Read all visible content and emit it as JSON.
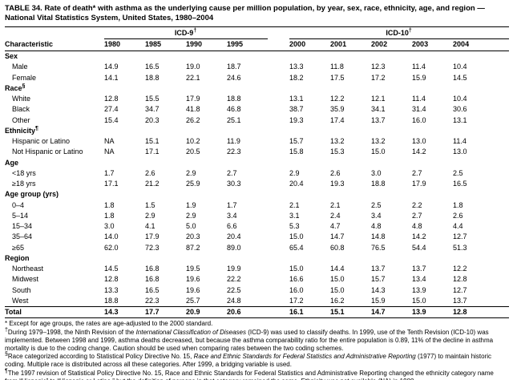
{
  "title": "TABLE 34. Rate of death* with asthma as the underlying cause per million population, by year, sex, race, ethnicity, age, and region — National Vital Statistics System, United States, 1980–2004",
  "table": {
    "char_header": "Characteristic",
    "group_headers": [
      {
        "label": "ICD-9",
        "marker": "†"
      },
      {
        "label": "ICD-10",
        "marker": "†"
      }
    ],
    "years": [
      "1980",
      "1985",
      "1990",
      "1995",
      "2000",
      "2001",
      "2002",
      "2003",
      "2004"
    ],
    "rows": [
      {
        "type": "section",
        "label": "Sex"
      },
      {
        "type": "data",
        "indent": true,
        "label": "Male",
        "values": [
          "14.9",
          "16.5",
          "19.0",
          "18.7",
          "13.3",
          "11.8",
          "12.3",
          "11.4",
          "10.4"
        ]
      },
      {
        "type": "data",
        "indent": true,
        "label": "Female",
        "values": [
          "14.1",
          "18.8",
          "22.1",
          "24.6",
          "18.2",
          "17.5",
          "17.2",
          "15.9",
          "14.5"
        ]
      },
      {
        "type": "section",
        "label": "Race",
        "marker": "§"
      },
      {
        "type": "data",
        "indent": true,
        "label": "White",
        "values": [
          "12.8",
          "15.5",
          "17.9",
          "18.8",
          "13.1",
          "12.2",
          "12.1",
          "11.4",
          "10.4"
        ]
      },
      {
        "type": "data",
        "indent": true,
        "label": "Black",
        "values": [
          "27.4",
          "34.7",
          "41.8",
          "46.8",
          "38.7",
          "35.9",
          "34.1",
          "31.4",
          "30.6"
        ]
      },
      {
        "type": "data",
        "indent": true,
        "label": "Other",
        "values": [
          "15.4",
          "20.3",
          "26.2",
          "25.1",
          "19.3",
          "17.4",
          "13.7",
          "16.0",
          "13.1"
        ]
      },
      {
        "type": "section",
        "label": "Ethnicity",
        "marker": "¶"
      },
      {
        "type": "data",
        "indent": true,
        "label": "Hispanic or Latino",
        "values": [
          "NA",
          "15.1",
          "10.2",
          "11.9",
          "15.7",
          "13.2",
          "13.2",
          "13.0",
          "11.4"
        ]
      },
      {
        "type": "data",
        "indent": true,
        "label": "Not Hispanic or Latino",
        "values": [
          "NA",
          "17.1",
          "20.5",
          "22.3",
          "15.8",
          "15.3",
          "15.0",
          "14.2",
          "13.0"
        ]
      },
      {
        "type": "section",
        "label": "Age"
      },
      {
        "type": "data",
        "indent": true,
        "label": "<18 yrs",
        "values": [
          "1.7",
          "2.6",
          "2.9",
          "2.7",
          "2.9",
          "2.6",
          "3.0",
          "2.7",
          "2.5"
        ]
      },
      {
        "type": "data",
        "indent": true,
        "label": "≥18 yrs",
        "values": [
          "17.1",
          "21.2",
          "25.9",
          "30.3",
          "20.4",
          "19.3",
          "18.8",
          "17.9",
          "16.5"
        ]
      },
      {
        "type": "section",
        "label": "Age group (yrs)"
      },
      {
        "type": "data",
        "indent": true,
        "label": "0–4",
        "values": [
          "1.8",
          "1.5",
          "1.9",
          "1.7",
          "2.1",
          "2.1",
          "2.5",
          "2.2",
          "1.8"
        ]
      },
      {
        "type": "data",
        "indent": true,
        "label": "5–14",
        "values": [
          "1.8",
          "2.9",
          "2.9",
          "3.4",
          "3.1",
          "2.4",
          "3.4",
          "2.7",
          "2.6"
        ]
      },
      {
        "type": "data",
        "indent": true,
        "label": "15–34",
        "values": [
          "3.0",
          "4.1",
          "5.0",
          "6.6",
          "5.3",
          "4.7",
          "4.8",
          "4.8",
          "4.4"
        ]
      },
      {
        "type": "data",
        "indent": true,
        "label": "35–64",
        "values": [
          "14.0",
          "17.9",
          "20.3",
          "20.4",
          "15.0",
          "14.7",
          "14.8",
          "14.2",
          "12.7"
        ]
      },
      {
        "type": "data",
        "indent": true,
        "label": "≥65",
        "values": [
          "62.0",
          "72.3",
          "87.2",
          "89.0",
          "65.4",
          "60.8",
          "76.5",
          "54.4",
          "51.3"
        ]
      },
      {
        "type": "section",
        "label": "Region"
      },
      {
        "type": "data",
        "indent": true,
        "label": "Northeast",
        "values": [
          "14.5",
          "16.8",
          "19.5",
          "19.9",
          "15.0",
          "14.4",
          "13.7",
          "13.7",
          "12.2"
        ]
      },
      {
        "type": "data",
        "indent": true,
        "label": "Midwest",
        "values": [
          "12.8",
          "16.8",
          "19.6",
          "22.2",
          "16.6",
          "15.0",
          "15.7",
          "13.4",
          "12.8"
        ]
      },
      {
        "type": "data",
        "indent": true,
        "label": "South",
        "values": [
          "13.3",
          "16.5",
          "19.6",
          "22.5",
          "16.0",
          "15.0",
          "14.3",
          "13.9",
          "12.7"
        ]
      },
      {
        "type": "data",
        "indent": true,
        "label": "West",
        "values": [
          "18.8",
          "22.3",
          "25.7",
          "24.8",
          "17.2",
          "16.2",
          "15.9",
          "15.0",
          "13.7"
        ]
      },
      {
        "type": "total",
        "label": "Total",
        "values": [
          "14.3",
          "17.7",
          "20.9",
          "20.6",
          "16.1",
          "15.1",
          "14.7",
          "13.9",
          "12.8"
        ]
      }
    ]
  },
  "footnotes": [
    {
      "marker": "*",
      "sup": false,
      "segments": [
        {
          "text": " Except for age groups, the rates are age-adjusted to the 2000 standard."
        }
      ]
    },
    {
      "marker": "†",
      "sup": true,
      "segments": [
        {
          "text": "During 1979–1998, the Ninth Revision of the "
        },
        {
          "text": "International Classification of Diseases",
          "italic": true
        },
        {
          "text": " (ICD-9) was used to classify deaths. In 1999, use of the Tenth Revision (ICD-10) was implemented. Between 1998 and 1999, asthma deaths decreased, but because the asthma comparability ratio for the entire population is 0.89, 11% of the decline in asthma mortality is due to the coding change. Caution should be used when comparing rates between the two coding schemes."
        }
      ]
    },
    {
      "marker": "§",
      "sup": true,
      "segments": [
        {
          "text": "Race categorized according to Statistical Policy Directive No. 15, "
        },
        {
          "text": "Race and Ethnic Standards for Federal Statistics and Administrative Reporting",
          "italic": true
        },
        {
          "text": " (1977) to maintain historic coding. Multiple race is distributed across all these categories. After 1999, a bridging variable is used."
        }
      ]
    },
    {
      "marker": "¶",
      "sup": true,
      "segments": [
        {
          "text": "The 1997 revision of Statistical Policy Directive No. 15, Race and Ethnic Standards for Federal Statistics and Administrative Reporting changed the ethnicity category name from “Hispanic” to “Hispanic or Latino,” but the definition of persons in that category remained the same. Ethnicity was not available (NA) in 1980."
        }
      ]
    }
  ]
}
